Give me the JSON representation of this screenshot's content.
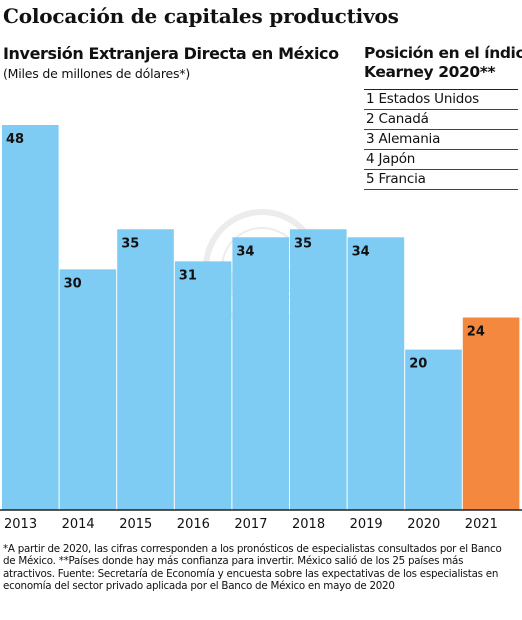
{
  "header": {
    "title": "Colocación de capitales productivos"
  },
  "chart_data": {
    "type": "bar",
    "title": "Inversión Extranjera Directa en México",
    "subtitle": "(Miles de millones de dólares*)",
    "categories": [
      "2013",
      "2014",
      "2015",
      "2016",
      "2017",
      "2018",
      "2019",
      "2020",
      "2021"
    ],
    "values": [
      48,
      30,
      35,
      31,
      34,
      35,
      34,
      20,
      24
    ],
    "highlight_category": "2021",
    "colors": {
      "bar": "#7ecbf4",
      "highlight": "#f5883f",
      "baseline": "#222222"
    },
    "xlabel": "",
    "ylabel": "",
    "ylim": [
      0,
      48
    ],
    "grid": false,
    "legend": "none",
    "data_labels": true
  },
  "ranking": {
    "title_line1": "Posición en el índice",
    "title_line2": "Kearney 2020**",
    "items": [
      "1 Estados Unidos",
      "2 Canadá",
      "3 Alemania",
      "4 Japón",
      "5 Francia"
    ]
  },
  "watermark": {
    "icon": "eagle-seal-icon"
  },
  "footnote": {
    "text": "*A partir de 2020, las cifras corresponden a los pronósticos de especialistas consultados por el Banco de México. **Países donde hay más confianza para invertir. México salió de los 25 países más atractivos. Fuente: Secretaría de Economía y encuesta sobre las expectativas de los especialistas en economía del sector privado aplicada por el Banco de México en mayo de 2020"
  }
}
